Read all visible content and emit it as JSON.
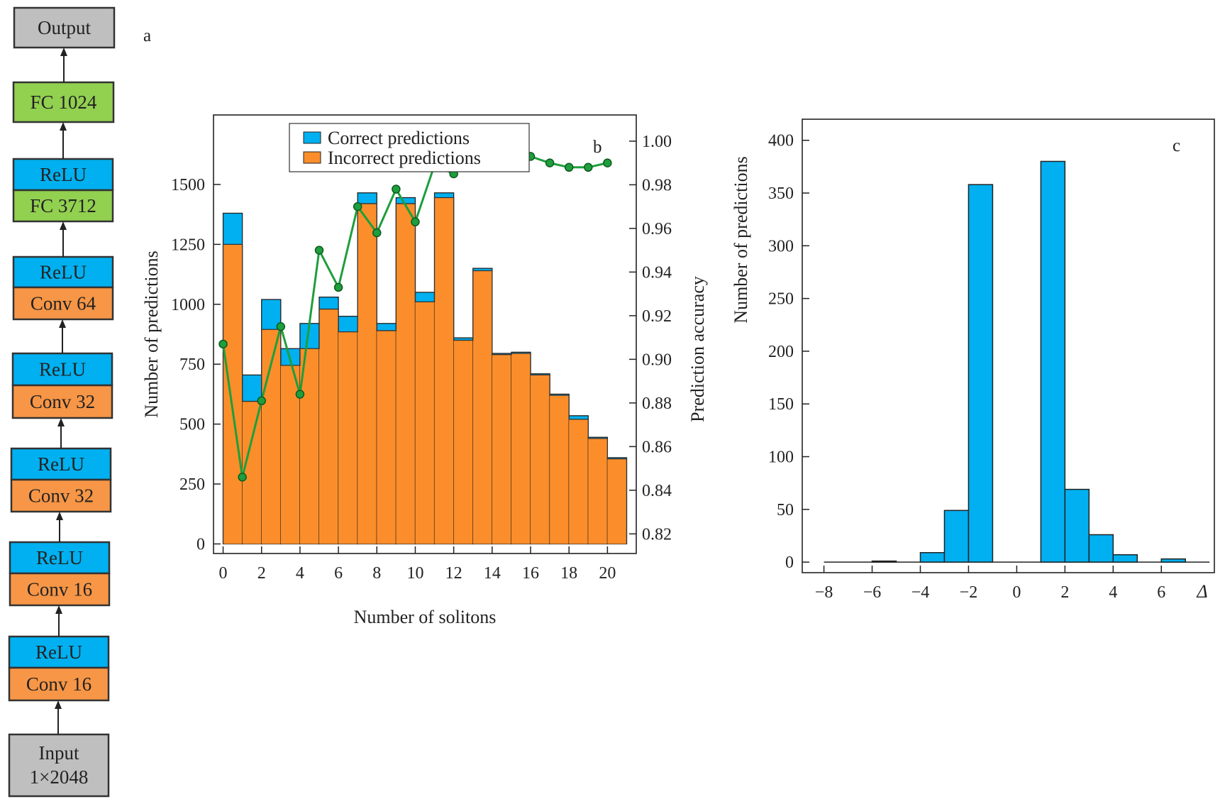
{
  "colors": {
    "relu": "#00b0f0",
    "conv": "#f79646",
    "fc": "#92d050",
    "io": "#bfbfbf",
    "correct": "#00b0f0",
    "incorrect": "#fb8e2a",
    "accuracy_line": "#1e9e3c"
  },
  "network": {
    "panel_label": "a",
    "blocks": [
      {
        "label": "Output",
        "kind": "io"
      },
      {
        "label": "FC 1024",
        "kind": "fc"
      },
      {
        "label": "ReLU",
        "kind": "relu"
      },
      {
        "label": "FC 3712",
        "kind": "fc"
      },
      {
        "label": "ReLU",
        "kind": "relu"
      },
      {
        "label": "Conv 64",
        "kind": "conv"
      },
      {
        "label": "ReLU",
        "kind": "relu"
      },
      {
        "label": "Conv 32",
        "kind": "conv"
      },
      {
        "label": "ReLU",
        "kind": "relu"
      },
      {
        "label": "Conv 32",
        "kind": "conv"
      },
      {
        "label": "ReLU",
        "kind": "relu"
      },
      {
        "label": "Conv 16",
        "kind": "conv"
      },
      {
        "label": "ReLU",
        "kind": "relu"
      },
      {
        "label": "Conv 16",
        "kind": "conv"
      },
      {
        "label": "Input",
        "kind": "io"
      },
      {
        "label": "1×2048",
        "kind": "io"
      }
    ]
  },
  "chart_data": [
    {
      "type": "bar",
      "panel_label": "b",
      "xlabel": "Number of solitons",
      "ylabel": "Number of predictions",
      "y2label": "Prediction accuracy",
      "x_ticks": [
        0,
        2,
        4,
        6,
        8,
        10,
        12,
        14,
        16,
        18,
        20
      ],
      "y_ticks": [
        0,
        250,
        500,
        750,
        1000,
        1250,
        1500
      ],
      "y2_ticks": [
        "0.82",
        "0.84",
        "0.86",
        "0.88",
        "0.90",
        "0.92",
        "0.94",
        "0.96",
        "0.98",
        "1.00"
      ],
      "xlim": [
        -0.5,
        21.5
      ],
      "ylim": [
        -40,
        1790
      ],
      "y2lim": [
        0.811,
        1.012
      ],
      "legend": {
        "placement": "top-center"
      },
      "categories": [
        0,
        1,
        2,
        3,
        4,
        5,
        6,
        7,
        8,
        9,
        10,
        11,
        12,
        13,
        14,
        15,
        16,
        17,
        18,
        19,
        20
      ],
      "series": [
        {
          "name": "Correct predictions",
          "role": "total",
          "values": [
            1380,
            705,
            1020,
            815,
            920,
            1030,
            950,
            1465,
            920,
            1445,
            1050,
            1465,
            860,
            1150,
            795,
            800,
            710,
            625,
            535,
            445,
            360
          ]
        },
        {
          "name": "Incorrect predictions",
          "role": "stack",
          "values": [
            1250,
            595,
            895,
            745,
            815,
            980,
            885,
            1420,
            890,
            1420,
            1010,
            1445,
            850,
            1140,
            790,
            795,
            705,
            620,
            520,
            440,
            355
          ]
        }
      ],
      "accuracy": {
        "x": [
          0,
          1,
          2,
          3,
          4,
          5,
          6,
          7,
          8,
          9,
          10,
          11,
          12,
          13,
          14,
          15,
          16,
          17,
          18,
          19,
          20
        ],
        "values": [
          0.907,
          0.846,
          0.881,
          0.915,
          0.884,
          0.95,
          0.933,
          0.97,
          0.958,
          0.978,
          0.963,
          0.989,
          0.985,
          0.991,
          0.99,
          0.991,
          0.993,
          0.99,
          0.988,
          0.988,
          0.99
        ]
      }
    },
    {
      "type": "bar",
      "panel_label": "c",
      "xlabel": "Δ",
      "ylabel": "Number of predictions",
      "x_ticks": [
        "−8",
        "−6",
        "−4",
        "−2",
        "0",
        "2",
        "4",
        "6"
      ],
      "x_tick_values": [
        -8,
        -6,
        -4,
        -2,
        0,
        2,
        4,
        6
      ],
      "y_ticks": [
        0,
        50,
        100,
        150,
        200,
        250,
        300,
        350,
        400
      ],
      "xlim": [
        -8.9,
        8.2
      ],
      "ylim": [
        -10,
        420
      ],
      "bins": [
        {
          "x0": -6,
          "x1": -5,
          "value": 1
        },
        {
          "x0": -4,
          "x1": -3,
          "value": 9
        },
        {
          "x0": -3,
          "x1": -2,
          "value": 49
        },
        {
          "x0": -2,
          "x1": -1,
          "value": 358
        },
        {
          "x0": 1,
          "x1": 2,
          "value": 380
        },
        {
          "x0": 2,
          "x1": 3,
          "value": 69
        },
        {
          "x0": 3,
          "x1": 4,
          "value": 26
        },
        {
          "x0": 4,
          "x1": 5,
          "value": 7
        },
        {
          "x0": 6,
          "x1": 7,
          "value": 3
        }
      ],
      "baseline": {
        "x0": -8,
        "x1": 8
      }
    }
  ]
}
